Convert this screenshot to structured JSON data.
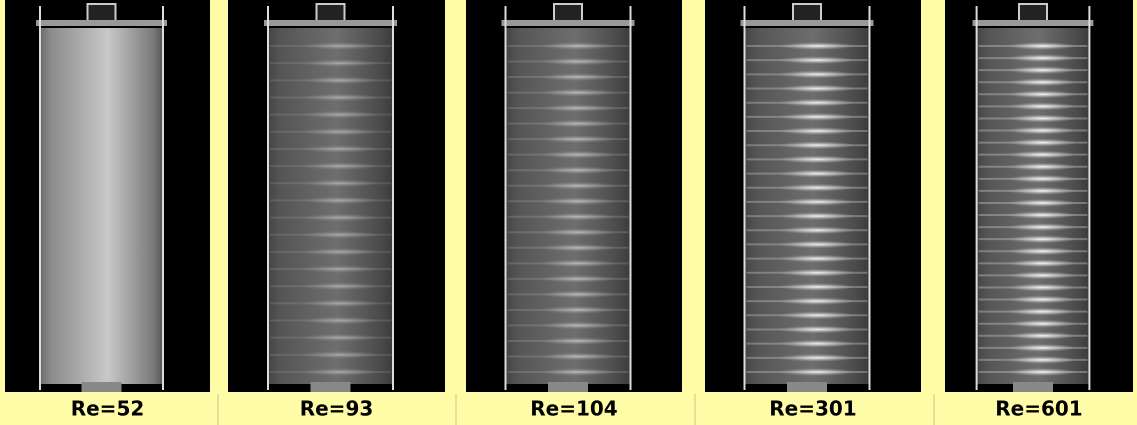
{
  "panels": [
    {
      "label": "Re=52"
    },
    {
      "label": "Re=93"
    },
    {
      "label": "Re=104"
    },
    {
      "label": "Re=301"
    },
    {
      "label": "Re=601"
    }
  ]
}
